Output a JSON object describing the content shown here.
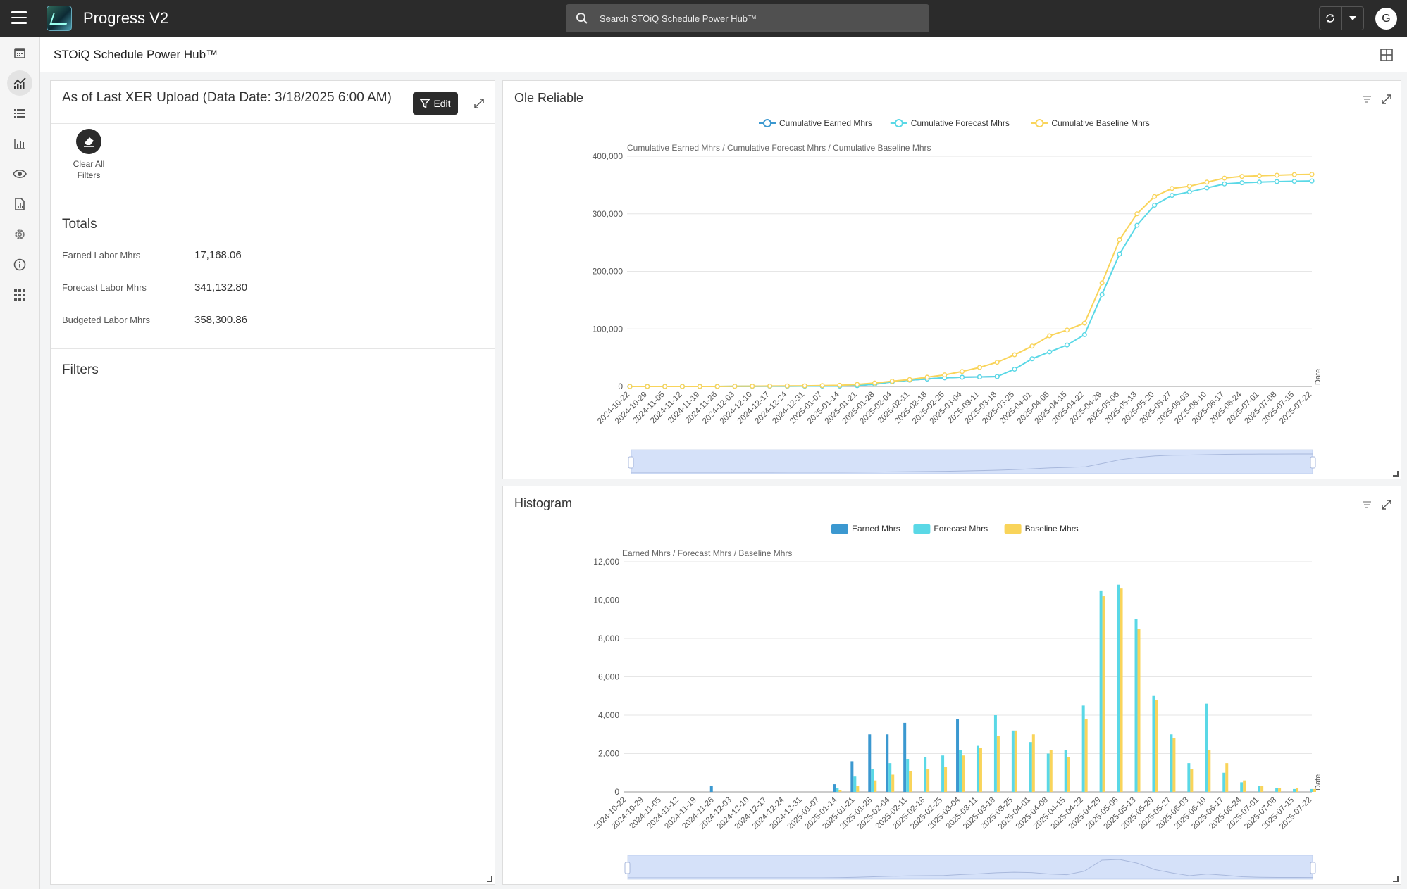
{
  "app": {
    "title": "Progress V2",
    "avatar_letter": "G"
  },
  "search": {
    "placeholder": "Search STOiQ Schedule Power Hub™"
  },
  "sidebar": {
    "items": [
      {
        "name": "calendar-icon"
      },
      {
        "name": "analytics-icon",
        "active": true
      },
      {
        "name": "list-icon"
      },
      {
        "name": "bar-chart-icon"
      },
      {
        "name": "eye-icon"
      },
      {
        "name": "report-icon"
      },
      {
        "name": "gear-icon"
      },
      {
        "name": "info-icon"
      },
      {
        "name": "apps-grid-icon"
      }
    ]
  },
  "page": {
    "title": "STOiQ Schedule Power Hub™"
  },
  "left_panel": {
    "title": "As of Last XER Upload (Data Date: 3/18/2025 6:00 AM)",
    "edit_label": "Edit",
    "clear_filters_label": "Clear All Filters",
    "totals_heading": "Totals",
    "totals": [
      {
        "label": "Earned Labor Mhrs",
        "value": "17,168.06"
      },
      {
        "label": "Forecast Labor Mhrs",
        "value": "341,132.80"
      },
      {
        "label": "Budgeted Labor Mhrs",
        "value": "358,300.86"
      }
    ],
    "filters_heading": "Filters"
  },
  "colors": {
    "earned": "#3b98d0",
    "forecast": "#5ad8e6",
    "baseline": "#f9d45a",
    "topbar": "#2b2b2b"
  },
  "chart_data": [
    {
      "type": "line",
      "title": "Ole Reliable",
      "ylabel": "Cumulative Earned Mhrs / Cumulative Forecast Mhrs / Cumulative Baseline Mhrs",
      "xlabel": "Date",
      "ylim": [
        0,
        400000
      ],
      "yticks": [
        "400,000",
        "300,000",
        "200,000",
        "100,000",
        "0"
      ],
      "legend": [
        "Cumulative Earned Mhrs",
        "Cumulative Forecast Mhrs",
        "Cumulative Baseline Mhrs"
      ],
      "categories": [
        "2024-10-22",
        "2024-10-29",
        "2024-11-05",
        "2024-11-12",
        "2024-11-19",
        "2024-11-26",
        "2024-12-03",
        "2024-12-10",
        "2024-12-17",
        "2024-12-24",
        "2024-12-31",
        "2025-01-07",
        "2025-01-14",
        "2025-01-21",
        "2025-01-28",
        "2025-02-04",
        "2025-02-11",
        "2025-02-18",
        "2025-02-25",
        "2025-03-04",
        "2025-03-11",
        "2025-03-18",
        "2025-03-25",
        "2025-04-01",
        "2025-04-08",
        "2025-04-15",
        "2025-04-22",
        "2025-04-29",
        "2025-05-06",
        "2025-05-13",
        "2025-05-20",
        "2025-05-27",
        "2025-06-03",
        "2025-06-10",
        "2025-06-17",
        "2025-06-24",
        "2025-07-01",
        "2025-07-08",
        "2025-07-15",
        "2025-07-22"
      ],
      "series": [
        {
          "name": "Cumulative Earned Mhrs",
          "values": [
            0,
            0,
            0,
            0,
            0,
            0,
            200,
            300,
            400,
            500,
            600,
            700,
            800,
            1500,
            4000,
            8000,
            11000,
            13000,
            15000,
            16000,
            16500,
            17168,
            null,
            null,
            null,
            null,
            null,
            null,
            null,
            null,
            null,
            null,
            null,
            null,
            null,
            null,
            null,
            null,
            null,
            null
          ]
        },
        {
          "name": "Cumulative Forecast Mhrs",
          "values": [
            0,
            0,
            0,
            0,
            0,
            0,
            200,
            300,
            400,
            500,
            600,
            700,
            800,
            1500,
            4000,
            8000,
            11000,
            13000,
            15000,
            16000,
            16500,
            17168,
            30000,
            48000,
            60000,
            72000,
            90000,
            160000,
            230000,
            280000,
            315000,
            332000,
            338000,
            345000,
            352000,
            354000,
            355000,
            356000,
            356500,
            357000
          ]
        },
        {
          "name": "Cumulative Baseline Mhrs",
          "values": [
            0,
            0,
            0,
            0,
            0,
            0,
            300,
            500,
            700,
            900,
            1100,
            1500,
            2000,
            3500,
            6000,
            9000,
            12000,
            16000,
            20000,
            26000,
            33000,
            42000,
            55000,
            70000,
            88000,
            98000,
            110000,
            180000,
            255000,
            300000,
            330000,
            344000,
            348000,
            355000,
            362000,
            365000,
            366000,
            367000,
            368000,
            368500
          ]
        }
      ]
    },
    {
      "type": "bar",
      "title": "Histogram",
      "ylabel": "Earned Mhrs / Forecast Mhrs / Baseline Mhrs",
      "xlabel": "Date",
      "ylim": [
        0,
        12000
      ],
      "yticks": [
        "12,000",
        "10,000",
        "8,000",
        "6,000",
        "4,000",
        "2,000",
        "0"
      ],
      "legend": [
        "Earned Mhrs",
        "Forecast Mhrs",
        "Baseline Mhrs"
      ],
      "categories": [
        "2024-10-22",
        "2024-10-29",
        "2024-11-05",
        "2024-11-12",
        "2024-11-19",
        "2024-11-26",
        "2024-12-03",
        "2024-12-10",
        "2024-12-17",
        "2024-12-24",
        "2024-12-31",
        "2025-01-07",
        "2025-01-14",
        "2025-01-21",
        "2025-01-28",
        "2025-02-04",
        "2025-02-11",
        "2025-02-18",
        "2025-02-25",
        "2025-03-04",
        "2025-03-11",
        "2025-03-18",
        "2025-03-25",
        "2025-04-01",
        "2025-04-08",
        "2025-04-15",
        "2025-04-22",
        "2025-04-29",
        "2025-05-06",
        "2025-05-13",
        "2025-05-20",
        "2025-05-27",
        "2025-06-03",
        "2025-06-10",
        "2025-06-17",
        "2025-06-24",
        "2025-07-01",
        "2025-07-08",
        "2025-07-15",
        "2025-07-22"
      ],
      "series": [
        {
          "name": "Earned Mhrs",
          "values": [
            0,
            0,
            0,
            0,
            0,
            300,
            0,
            0,
            0,
            0,
            0,
            0,
            400,
            1600,
            3000,
            3000,
            3600,
            0,
            0,
            3800,
            0,
            0,
            0,
            0,
            0,
            0,
            0,
            0,
            0,
            0,
            0,
            0,
            0,
            0,
            0,
            0,
            0,
            0,
            0,
            0
          ]
        },
        {
          "name": "Forecast Mhrs",
          "values": [
            0,
            0,
            0,
            0,
            0,
            0,
            0,
            0,
            0,
            0,
            0,
            0,
            200,
            800,
            1200,
            1500,
            1700,
            1800,
            1900,
            2200,
            2400,
            4000,
            3200,
            2600,
            2000,
            2200,
            4500,
            10500,
            10800,
            9000,
            5000,
            3000,
            1500,
            4600,
            1000,
            500,
            300,
            200,
            150,
            150
          ]
        },
        {
          "name": "Baseline Mhrs",
          "values": [
            0,
            0,
            0,
            0,
            0,
            0,
            0,
            0,
            0,
            0,
            0,
            0,
            100,
            300,
            600,
            900,
            1100,
            1200,
            1300,
            1900,
            2300,
            2900,
            3200,
            3000,
            2200,
            1800,
            3800,
            10200,
            10600,
            8500,
            4800,
            2800,
            1200,
            2200,
            1500,
            600,
            300,
            200,
            200,
            150
          ]
        }
      ]
    }
  ]
}
